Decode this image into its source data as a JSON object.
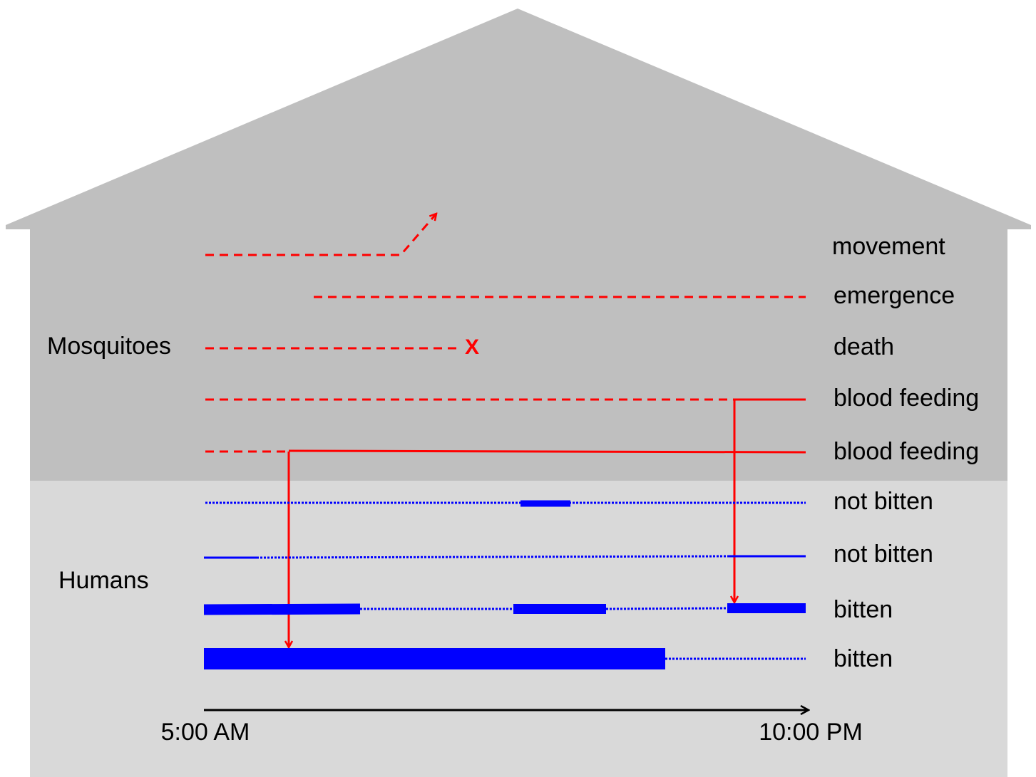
{
  "groups": [
    {
      "label": "Mosquitoes"
    },
    {
      "label": "Humans"
    }
  ],
  "rows": [
    {
      "label": "movement"
    },
    {
      "label": "emergence"
    },
    {
      "label": "death"
    },
    {
      "label": "blood feeding"
    },
    {
      "label": "blood feeding"
    },
    {
      "label": "not bitten"
    },
    {
      "label": "not bitten"
    },
    {
      "label": "bitten"
    },
    {
      "label": "bitten"
    }
  ],
  "death_marker": "X",
  "time_axis": {
    "start": "5:00 AM",
    "end": "10:00 PM"
  }
}
